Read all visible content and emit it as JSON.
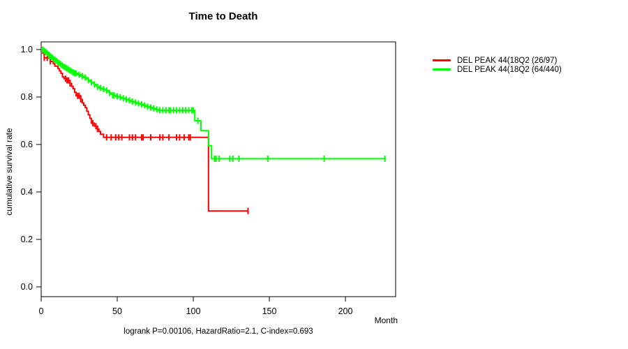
{
  "chart_data": {
    "type": "line",
    "subtype": "kaplan-meier-step",
    "title": "Time to Death",
    "xlabel": "Month",
    "ylabel": "cumulative survival rate",
    "annotation": "logrank P=0.00106, HazardRatio=2.1, C-index=0.693",
    "xlim": [
      0,
      233
    ],
    "ylim": [
      0.0,
      1.0
    ],
    "x_ticks": [
      0,
      50,
      100,
      150,
      200
    ],
    "y_ticks": [
      0.0,
      0.2,
      0.4,
      0.6,
      0.8,
      1.0
    ],
    "grid": false,
    "legend_position": "right-outside",
    "legend": [
      {
        "label": "DEL PEAK 44(18Q2 (26/97)",
        "color": "#ff0000"
      },
      {
        "label": "DEL PEAK 44(18Q2 (64/440)",
        "color": "#00ff00"
      }
    ],
    "series": [
      {
        "name": "DEL PEAK 44(18Q2 (26/97)",
        "color": "#ff0000",
        "end_month": 136,
        "steps": [
          [
            0,
            1.0
          ],
          [
            1,
            0.985
          ],
          [
            2,
            0.965
          ],
          [
            6,
            0.95
          ],
          [
            8,
            0.94
          ],
          [
            9,
            0.93
          ],
          [
            11,
            0.92
          ],
          [
            12,
            0.91
          ],
          [
            13,
            0.9
          ],
          [
            14,
            0.885
          ],
          [
            15,
            0.877
          ],
          [
            17,
            0.87
          ],
          [
            19,
            0.857
          ],
          [
            20,
            0.845
          ],
          [
            21,
            0.835
          ],
          [
            22,
            0.82
          ],
          [
            23,
            0.805
          ],
          [
            26,
            0.79
          ],
          [
            27,
            0.775
          ],
          [
            28,
            0.765
          ],
          [
            29,
            0.755
          ],
          [
            30,
            0.74
          ],
          [
            31,
            0.725
          ],
          [
            32,
            0.71
          ],
          [
            33,
            0.69
          ],
          [
            35,
            0.677
          ],
          [
            37,
            0.665
          ],
          [
            38,
            0.655
          ],
          [
            39,
            0.643
          ],
          [
            41,
            0.63
          ],
          [
            110,
            0.32
          ]
        ],
        "censor_months": [
          2,
          4,
          6,
          16,
          17,
          18,
          19,
          24,
          25,
          26,
          34,
          36,
          37,
          43,
          46,
          49,
          51,
          53,
          58,
          60,
          62,
          66,
          67,
          72,
          78,
          80,
          84,
          89,
          91,
          94,
          97,
          98,
          136
        ]
      },
      {
        "name": "DEL PEAK 44(18Q2 (64/440)",
        "color": "#00ff00",
        "end_month": 226,
        "steps": [
          [
            0,
            1.0
          ],
          [
            2,
            0.995
          ],
          [
            3,
            0.99
          ],
          [
            4,
            0.985
          ],
          [
            5,
            0.978
          ],
          [
            6,
            0.972
          ],
          [
            7,
            0.968
          ],
          [
            8,
            0.962
          ],
          [
            9,
            0.957
          ],
          [
            10,
            0.952
          ],
          [
            11,
            0.947
          ],
          [
            12,
            0.942
          ],
          [
            13,
            0.937
          ],
          [
            14,
            0.932
          ],
          [
            15,
            0.928
          ],
          [
            16,
            0.924
          ],
          [
            17,
            0.92
          ],
          [
            18,
            0.916
          ],
          [
            19,
            0.912
          ],
          [
            20,
            0.908
          ],
          [
            21,
            0.904
          ],
          [
            22,
            0.9
          ],
          [
            24,
            0.894
          ],
          [
            26,
            0.888
          ],
          [
            28,
            0.882
          ],
          [
            30,
            0.876
          ],
          [
            31,
            0.871
          ],
          [
            32,
            0.866
          ],
          [
            33,
            0.862
          ],
          [
            34,
            0.858
          ],
          [
            35,
            0.853
          ],
          [
            36,
            0.848
          ],
          [
            37,
            0.843
          ],
          [
            38,
            0.838
          ],
          [
            40,
            0.833
          ],
          [
            42,
            0.828
          ],
          [
            44,
            0.822
          ],
          [
            45,
            0.817
          ],
          [
            46,
            0.812
          ],
          [
            47,
            0.807
          ],
          [
            49,
            0.803
          ],
          [
            51,
            0.799
          ],
          [
            53,
            0.795
          ],
          [
            55,
            0.79
          ],
          [
            57,
            0.786
          ],
          [
            59,
            0.781
          ],
          [
            61,
            0.777
          ],
          [
            63,
            0.773
          ],
          [
            65,
            0.769
          ],
          [
            67,
            0.765
          ],
          [
            69,
            0.76
          ],
          [
            71,
            0.756
          ],
          [
            73,
            0.752
          ],
          [
            75,
            0.748
          ],
          [
            77,
            0.744
          ],
          [
            101,
            0.7
          ],
          [
            105,
            0.658
          ],
          [
            110,
            0.595
          ],
          [
            112,
            0.54
          ]
        ],
        "censor_months": [
          1,
          2,
          3,
          4,
          5,
          6,
          7,
          8,
          9,
          10,
          11,
          12,
          13,
          14,
          15,
          16,
          17,
          18,
          19,
          20,
          21,
          22,
          23,
          25,
          27,
          29,
          31,
          33,
          35,
          37,
          39,
          41,
          43,
          45,
          47,
          48,
          50,
          52,
          54,
          56,
          58,
          60,
          62,
          64,
          66,
          68,
          70,
          72,
          74,
          76,
          78,
          80,
          82,
          84,
          85,
          87,
          89,
          91,
          93,
          95,
          97,
          99,
          100,
          103,
          114,
          115,
          117,
          124,
          126,
          130,
          149,
          186,
          226
        ]
      }
    ]
  }
}
